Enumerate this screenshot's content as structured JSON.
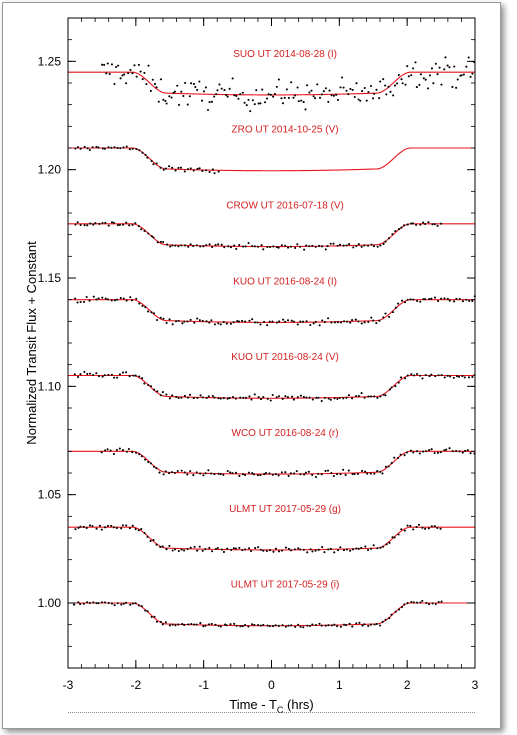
{
  "chart_data": {
    "type": "scatter",
    "title": "",
    "xlabel": "Time - T",
    "xlabel_sub": "C",
    "xlabel_unit": " (hrs)",
    "ylabel": "Normalized Transit Flux + Constant",
    "xlim": [
      -3,
      3
    ],
    "ylim": [
      0.97,
      1.27
    ],
    "x_ticks": [
      "-3",
      "-2",
      "-1",
      "0",
      "1",
      "2",
      "3"
    ],
    "x_tick_values": [
      -3,
      -2,
      -1,
      0,
      1,
      2,
      3
    ],
    "y_ticks": [
      "1.00",
      "1.05",
      "1.10",
      "1.15",
      "1.20",
      "1.25"
    ],
    "y_tick_values": [
      1.0,
      1.05,
      1.1,
      1.15,
      1.2,
      1.25
    ],
    "grid": false,
    "colors": {
      "data": "#000000",
      "model": "#e8141b",
      "labels": "#d42020"
    },
    "series": [
      {
        "name": "SUO UT 2014-08-28 (I)",
        "baseline": 1.245,
        "depth": 0.0105,
        "x_start": -2.5,
        "x_end": 3.0,
        "scatter": 0.0065,
        "spacing": 0.03
      },
      {
        "name": "ZRO UT 2014-10-25 (V)",
        "baseline": 1.21,
        "depth": 0.0105,
        "x_start": -2.9,
        "x_end": -0.75,
        "scatter": 0.0012,
        "spacing": 0.045
      },
      {
        "name": "CROW UT 2016-07-18 (V)",
        "baseline": 1.175,
        "depth": 0.0105,
        "x_start": -2.9,
        "x_end": 2.5,
        "scatter": 0.0012,
        "spacing": 0.045
      },
      {
        "name": "KUO UT 2016-08-24 (I)",
        "baseline": 1.14,
        "depth": 0.0105,
        "x_start": -2.9,
        "x_end": 3.0,
        "scatter": 0.0015,
        "spacing": 0.045
      },
      {
        "name": "KUO UT 2016-08-24 (V)",
        "baseline": 1.105,
        "depth": 0.0105,
        "x_start": -2.9,
        "x_end": 3.0,
        "scatter": 0.0014,
        "spacing": 0.045
      },
      {
        "name": "WCO UT 2016-08-24 (r)",
        "baseline": 1.07,
        "depth": 0.0105,
        "x_start": -2.5,
        "x_end": 3.0,
        "scatter": 0.0013,
        "spacing": 0.045
      },
      {
        "name": "ULMT UT 2017-05-29 (g)",
        "baseline": 1.035,
        "depth": 0.0105,
        "x_start": -2.9,
        "x_end": 2.5,
        "scatter": 0.0012,
        "spacing": 0.045
      },
      {
        "name": "ULMT UT 2017-05-29 (i)",
        "baseline": 1.0,
        "depth": 0.0105,
        "x_start": -2.9,
        "x_end": 2.5,
        "scatter": 0.001,
        "spacing": 0.045
      }
    ],
    "model": {
      "t1": -2.05,
      "t2": -1.55,
      "t3": 1.55,
      "t4": 2.05
    }
  }
}
